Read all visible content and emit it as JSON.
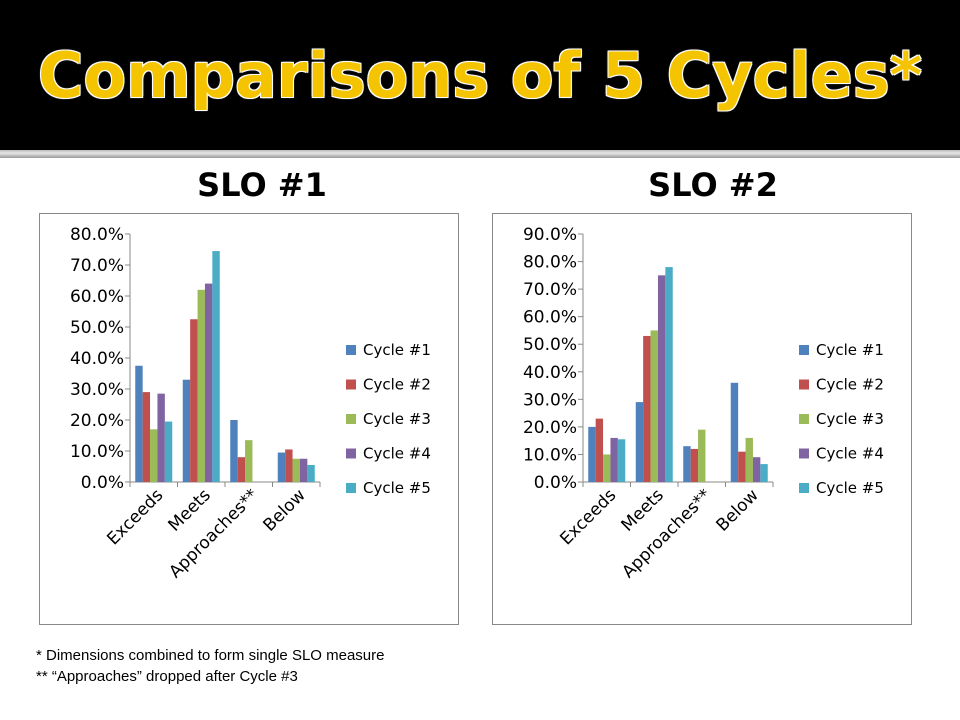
{
  "slide": {
    "title": "Comparisons of 5 Cycles*",
    "footnotes": [
      "* Dimensions combined to form single SLO measure",
      "** “Approaches” dropped after Cycle #3"
    ]
  },
  "colors": {
    "title": "#f5c400",
    "series": [
      "#4f81bd",
      "#c0504d",
      "#9bbb59",
      "#8064a2",
      "#4bacc6"
    ]
  },
  "charts": [
    {
      "heading": "SLO #1",
      "yticks": [
        "0.0%",
        "10.0%",
        "20.0%",
        "30.0%",
        "40.0%",
        "50.0%",
        "60.0%",
        "70.0%",
        "80.0%"
      ]
    },
    {
      "heading": "SLO #2",
      "yticks": [
        "0.0%",
        "10.0%",
        "20.0%",
        "30.0%",
        "40.0%",
        "50.0%",
        "60.0%",
        "70.0%",
        "80.0%",
        "90.0%"
      ]
    }
  ],
  "chart_data": [
    {
      "type": "bar",
      "title": "SLO #1",
      "categories": [
        "Exceeds",
        "Meets",
        "Approaches**",
        "Below"
      ],
      "ylim": [
        0,
        80
      ],
      "grid": false,
      "legend_position": "right",
      "series": [
        {
          "name": "Cycle #1",
          "values": [
            37.5,
            33,
            20,
            9.5
          ]
        },
        {
          "name": "Cycle #2",
          "values": [
            29,
            52.5,
            8,
            10.5
          ]
        },
        {
          "name": "Cycle #3",
          "values": [
            17,
            62,
            13.5,
            7.5
          ]
        },
        {
          "name": "Cycle #4",
          "values": [
            28.5,
            64,
            0,
            7.5
          ]
        },
        {
          "name": "Cycle #5",
          "values": [
            19.5,
            74.5,
            0,
            5.5
          ]
        }
      ]
    },
    {
      "type": "bar",
      "title": "SLO #2",
      "categories": [
        "Exceeds",
        "Meets",
        "Approaches**",
        "Below"
      ],
      "ylim": [
        0,
        90
      ],
      "grid": false,
      "legend_position": "right",
      "series": [
        {
          "name": "Cycle #1",
          "values": [
            20,
            29,
            13,
            36
          ]
        },
        {
          "name": "Cycle #2",
          "values": [
            23,
            53,
            12,
            11
          ]
        },
        {
          "name": "Cycle #3",
          "values": [
            10,
            55,
            19,
            16
          ]
        },
        {
          "name": "Cycle #4",
          "values": [
            16,
            75,
            0,
            9
          ]
        },
        {
          "name": "Cycle #5",
          "values": [
            15.5,
            78,
            0,
            6.5
          ]
        }
      ]
    }
  ]
}
